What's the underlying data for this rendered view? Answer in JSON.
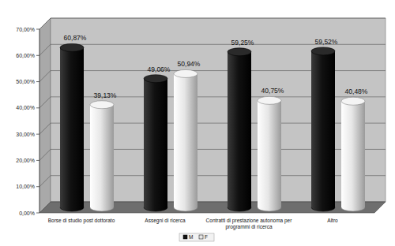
{
  "chart_data": {
    "type": "bar",
    "categories": [
      "Borse di studio post dottorato",
      "Assegni di ricerca",
      "Contratti di prestazione autonoma per programmi di ricerca",
      "Altro"
    ],
    "series": [
      {
        "name": "M",
        "color": "#111111",
        "values": [
          60.87,
          49.06,
          59.25,
          59.52
        ],
        "value_labels": [
          "60,87%",
          "49,06%",
          "59,25%",
          "59,52%"
        ]
      },
      {
        "name": "F",
        "color": "#e6e6e6",
        "values": [
          39.13,
          50.94,
          40.75,
          40.48
        ],
        "value_labels": [
          "39,13%",
          "50,94%",
          "40,75%",
          "40,48%"
        ]
      }
    ],
    "ylim": [
      0,
      70
    ],
    "yticks": [
      {
        "value": 0,
        "label": "0,00%"
      },
      {
        "value": 10,
        "label": "10,00%"
      },
      {
        "value": 20,
        "label": "20,00%"
      },
      {
        "value": 30,
        "label": "30,00%"
      },
      {
        "value": 40,
        "label": "40,00%"
      },
      {
        "value": 50,
        "label": "50,00%"
      },
      {
        "value": 60,
        "label": "60,00%"
      },
      {
        "value": 70,
        "label": "70,00%"
      }
    ],
    "grid": true,
    "legend": "bottom",
    "data_labels": true
  }
}
